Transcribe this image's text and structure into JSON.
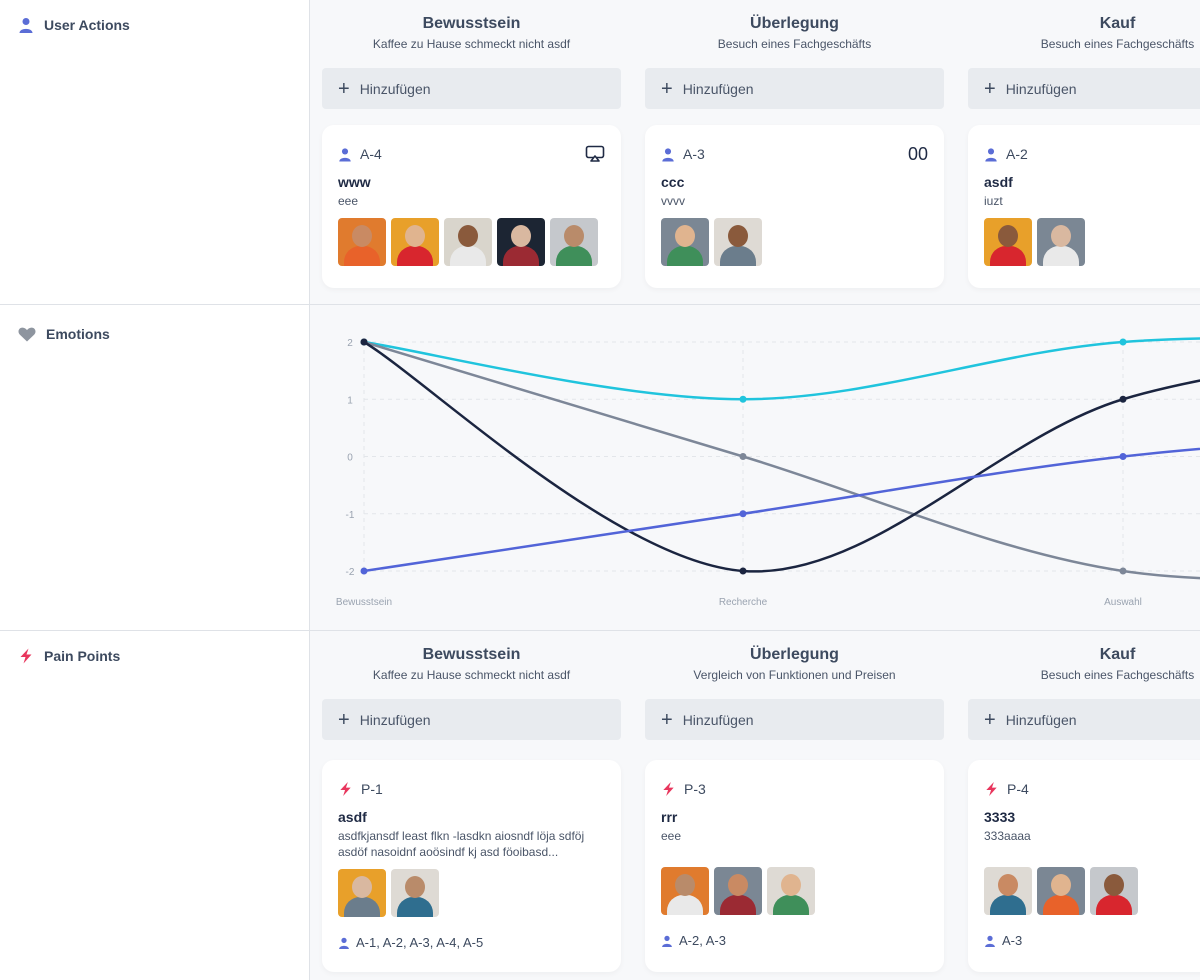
{
  "sections": {
    "user_actions": {
      "title": "User Actions"
    },
    "emotions": {
      "title": "Emotions"
    },
    "pain_points": {
      "title": "Pain Points"
    }
  },
  "add_label": "Hinzufügen",
  "user_actions": {
    "columns": [
      {
        "title": "Bewusstsein",
        "subtitle": "Kaffee zu Hause schmeckt nicht asdf",
        "card": {
          "id": "A-4",
          "right": "",
          "right_icon": "airplay-icon",
          "title": "www",
          "desc": "eee",
          "avatars": [
            "#e07b2e",
            "#e8a02a",
            "#d9d5cc",
            "#1c2533",
            "#c5c8cc"
          ]
        }
      },
      {
        "title": "Überlegung",
        "subtitle": "Besuch eines Fachgeschäfts",
        "card": {
          "id": "A-3",
          "right": "00",
          "title": "ccc",
          "desc": "vvvv",
          "avatars": [
            "#7b8794",
            "#dedad4"
          ]
        }
      },
      {
        "title": "Kauf",
        "subtitle": "Besuch eines Fachgeschäfts",
        "card": {
          "id": "A-2",
          "right": "",
          "title": "asdf",
          "desc": "iuzt",
          "avatars": [
            "#e8a02a",
            "#7b8794"
          ]
        }
      }
    ]
  },
  "colors": {
    "accent_blue": "#5b6dd6",
    "pain_red": "#e8365d",
    "heart_gray": "#8e959f"
  },
  "chart_data": {
    "type": "line",
    "categories": [
      "Bewusstsein",
      "Recherche",
      "Auswahl"
    ],
    "y_ticks": [
      "2",
      "1",
      "0",
      "-1",
      "-2"
    ],
    "ylim": [
      -2,
      2
    ],
    "grid": true,
    "series": [
      {
        "color": "#20c4dd",
        "values": [
          2,
          1,
          2
        ]
      },
      {
        "color": "#7d8798",
        "values": [
          2,
          0,
          -2
        ]
      },
      {
        "color": "#1b2540",
        "values": [
          2,
          -2,
          1
        ]
      },
      {
        "color": "#5264d8",
        "values": [
          -2,
          -1,
          0
        ]
      }
    ]
  },
  "pain_points": {
    "columns": [
      {
        "title": "Bewusstsein",
        "subtitle": "Kaffee zu Hause schmeckt nicht asdf",
        "card": {
          "id": "P-1",
          "title": "asdf",
          "desc": "asdfkjansdf least flkn -lasdkn aiosndf löja sdföj asdöf nasoidnf aoösindf kj asd föoibasd...",
          "avatars": [
            "#e8a02a",
            "#dedad4"
          ],
          "refs": "A-1,  A-2,  A-3,  A-4,  A-5"
        }
      },
      {
        "title": "Überlegung",
        "subtitle": "Vergleich von Funktionen und Preisen",
        "card": {
          "id": "P-3",
          "title": "rrr",
          "desc": "eee",
          "avatars": [
            "#e07b2e",
            "#7b8794",
            "#dedad4"
          ],
          "refs": "A-2,  A-3"
        }
      },
      {
        "title": "Kauf",
        "subtitle": "Besuch eines Fachgeschäfts",
        "card": {
          "id": "P-4",
          "title": "3333",
          "desc": "333aaaa",
          "avatars": [
            "#dedad4",
            "#7b8794",
            "#c5c8cc"
          ],
          "refs": "A-3"
        }
      }
    ]
  }
}
